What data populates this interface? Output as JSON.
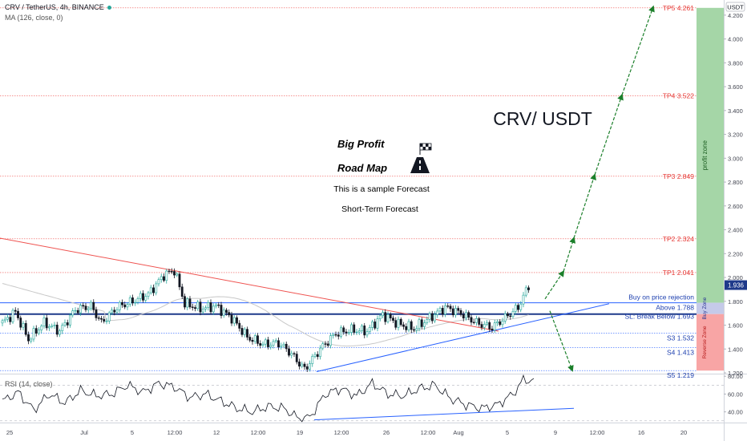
{
  "header": {
    "symbol_line": "CRV / TetherUS, 4h, BINANCE",
    "ma_line": "MA (126, close, 0)"
  },
  "rsi_header": "RSI (14, close)",
  "currency_badge": "USDT",
  "colors": {
    "up": "#26a69a",
    "down": "#131722",
    "tp_line": "#ef5350",
    "support_line": "#2962ff",
    "ma_line": "#c8c8c8",
    "downtrend": "#ef5350",
    "uptrend": "#2962ff",
    "arrow": "#1b7f2a",
    "profit_zone": "#a5d6a7",
    "buy_zone": "#c5cae9",
    "reverse_zone": "#f8a5a5"
  },
  "annotations": {
    "big_profit": "Big Profit",
    "road_map": "Road Map",
    "sample": "This is a sample Forecast",
    "short_term": "Short-Term Forecast",
    "pair_title": "CRV/ USDT",
    "profit_zone": "profit zone",
    "buy_zone": "Buy Zone",
    "reverse_zone": "Reverse Zone"
  },
  "chart_data": [
    {
      "type": "candlestick",
      "title": "CRV / TetherUS, 4h, BINANCE",
      "ylim": [
        1.19,
        4.3
      ],
      "y_ticks": [
        1.2,
        1.4,
        1.6,
        1.8,
        2.0,
        2.2,
        2.4,
        2.6,
        2.8,
        3.0,
        3.2,
        3.4,
        3.6,
        3.8,
        4.0,
        4.2
      ],
      "y_tick_labels": [
        "1.200",
        "1.400",
        "1.600",
        "1.800",
        "2.000",
        "2.200",
        "2.400",
        "2.600",
        "2.800",
        "3.000",
        "3.200",
        "3.400",
        "3.600",
        "3.800",
        "4.000",
        "4.200"
      ],
      "x_tick_labels": [
        "25",
        "Jul",
        "5",
        "12:00",
        "12",
        "12:00",
        "19",
        "12:00",
        "26",
        "12:00",
        "Aug",
        "5",
        "9",
        "12:00",
        "16",
        "20"
      ],
      "last_price": "1.936",
      "close_anchors": [
        [
          0,
          1.62
        ],
        [
          5,
          1.71
        ],
        [
          10,
          1.48
        ],
        [
          16,
          1.62
        ],
        [
          22,
          1.55
        ],
        [
          28,
          1.73
        ],
        [
          34,
          1.76
        ],
        [
          38,
          1.62
        ],
        [
          44,
          1.75
        ],
        [
          50,
          1.8
        ],
        [
          56,
          1.86
        ],
        [
          62,
          2.02
        ],
        [
          66,
          2.06
        ],
        [
          70,
          1.78
        ],
        [
          76,
          1.74
        ],
        [
          82,
          1.76
        ],
        [
          88,
          1.66
        ],
        [
          94,
          1.5
        ],
        [
          100,
          1.44
        ],
        [
          106,
          1.45
        ],
        [
          110,
          1.38
        ],
        [
          116,
          1.23
        ],
        [
          122,
          1.4
        ],
        [
          128,
          1.53
        ],
        [
          134,
          1.56
        ],
        [
          140,
          1.55
        ],
        [
          146,
          1.69
        ],
        [
          152,
          1.61
        ],
        [
          158,
          1.57
        ],
        [
          164,
          1.66
        ],
        [
          170,
          1.75
        ],
        [
          176,
          1.7
        ],
        [
          182,
          1.62
        ],
        [
          188,
          1.58
        ],
        [
          194,
          1.68
        ],
        [
          198,
          1.75
        ],
        [
          202,
          1.93
        ]
      ],
      "levels": [
        {
          "label": "TP5 4.261",
          "value": 4.261,
          "style": "tp"
        },
        {
          "label": "TP4 3.522",
          "value": 3.522,
          "style": "tp"
        },
        {
          "label": "TP3 2.849",
          "value": 2.849,
          "style": "tp"
        },
        {
          "label": "TP2 2.324",
          "value": 2.324,
          "style": "tp"
        },
        {
          "label": "TP1 2.041",
          "value": 2.041,
          "style": "tp"
        },
        {
          "label": "Buy on price rejection",
          "value": 1.79,
          "style": "note"
        },
        {
          "label": "Above 1.788",
          "value": 1.788,
          "style": "support"
        },
        {
          "label": "SL: Break Below 1.693",
          "value": 1.693,
          "style": "sl"
        },
        {
          "label": "S3 1.532",
          "value": 1.532,
          "style": "support"
        },
        {
          "label": "S4 1.413",
          "value": 1.413,
          "style": "support"
        },
        {
          "label": "S5 1.219",
          "value": 1.219,
          "style": "support"
        }
      ]
    },
    {
      "type": "line",
      "title": "RSI (14, close)",
      "ylim": [
        28,
        82
      ],
      "y_ticks": [
        40,
        60,
        80
      ],
      "y_tick_labels": [
        "40.00",
        "60.00",
        "80.00"
      ],
      "anchors": [
        [
          0,
          52
        ],
        [
          6,
          62
        ],
        [
          12,
          42
        ],
        [
          18,
          60
        ],
        [
          24,
          50
        ],
        [
          30,
          64
        ],
        [
          36,
          58
        ],
        [
          42,
          60
        ],
        [
          48,
          70
        ],
        [
          54,
          62
        ],
        [
          60,
          72
        ],
        [
          66,
          68
        ],
        [
          72,
          56
        ],
        [
          78,
          60
        ],
        [
          84,
          52
        ],
        [
          90,
          44
        ],
        [
          96,
          40
        ],
        [
          102,
          46
        ],
        [
          108,
          44
        ],
        [
          114,
          32
        ],
        [
          118,
          34
        ],
        [
          124,
          60
        ],
        [
          130,
          66
        ],
        [
          136,
          58
        ],
        [
          142,
          72
        ],
        [
          148,
          60
        ],
        [
          154,
          58
        ],
        [
          160,
          66
        ],
        [
          166,
          70
        ],
        [
          172,
          55
        ],
        [
          178,
          48
        ],
        [
          184,
          44
        ],
        [
          190,
          48
        ],
        [
          196,
          60
        ],
        [
          200,
          76
        ],
        [
          204,
          75
        ]
      ]
    }
  ]
}
